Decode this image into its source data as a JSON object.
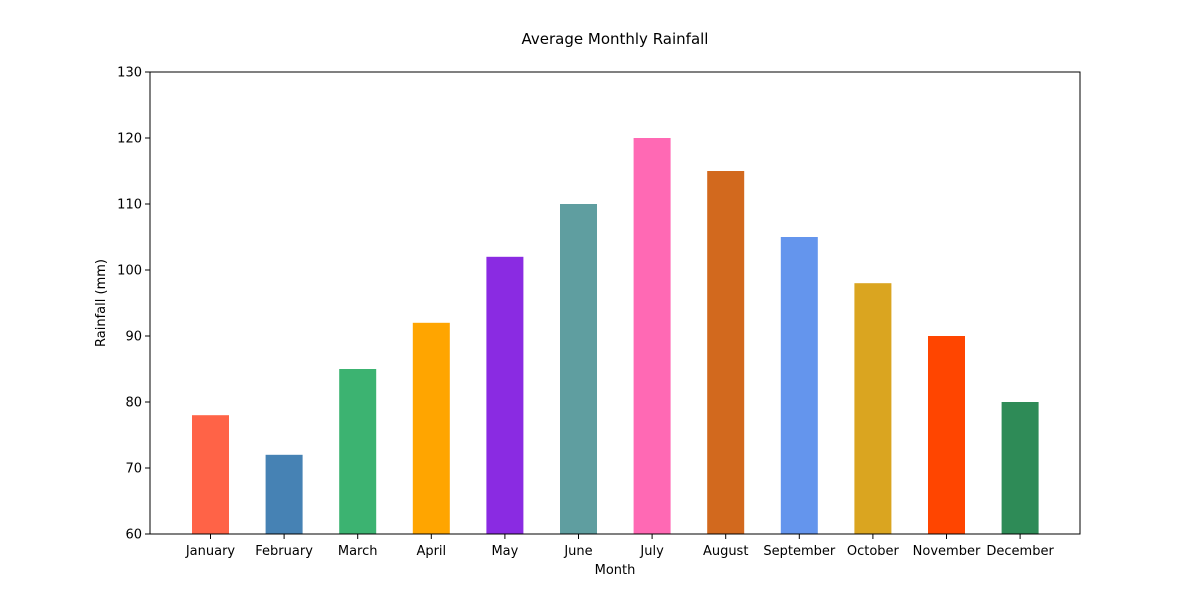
{
  "chart_data": {
    "type": "bar",
    "title": "Average Monthly Rainfall",
    "xlabel": "Month",
    "ylabel": "Rainfall (mm)",
    "categories": [
      "January",
      "February",
      "March",
      "April",
      "May",
      "June",
      "July",
      "August",
      "September",
      "October",
      "November",
      "December"
    ],
    "values": [
      78,
      72,
      85,
      92,
      102,
      110,
      120,
      115,
      105,
      98,
      90,
      80
    ],
    "colors": [
      "#ff6347",
      "#4682b4",
      "#3cb371",
      "#ffa500",
      "#8a2be2",
      "#5f9ea0",
      "#ff69b4",
      "#d2691e",
      "#6495ed",
      "#daa520",
      "#ff4500",
      "#2e8b57"
    ],
    "ylim": [
      60,
      130
    ],
    "yticks": [
      "60",
      "70",
      "80",
      "90",
      "100",
      "110",
      "120",
      "130"
    ],
    "grid": false,
    "legend": "none"
  }
}
